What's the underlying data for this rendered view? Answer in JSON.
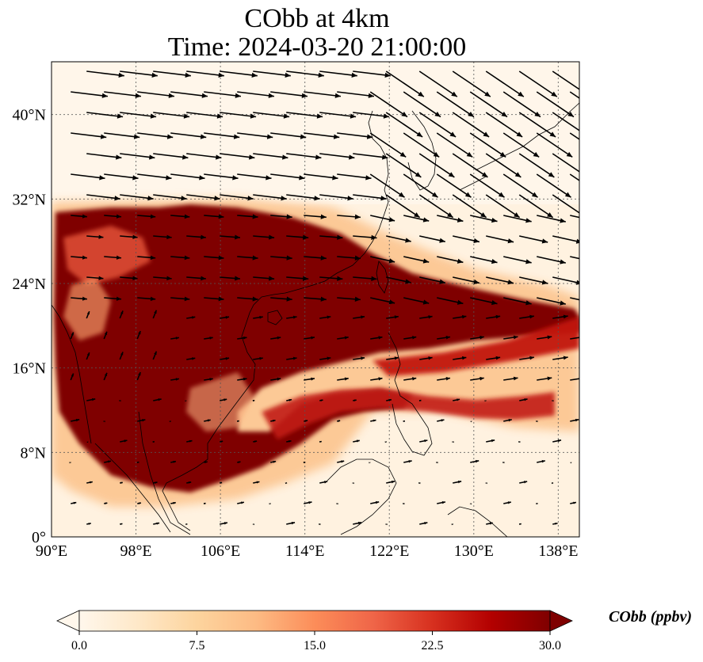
{
  "title": {
    "line1": "CObb at 4km",
    "line2": "Time: 2024-03-20 21:00:00"
  },
  "map": {
    "region": "East and Southeast Asia",
    "lon_range": [
      90,
      140
    ],
    "lat_range": [
      0,
      45
    ],
    "lon_ticks": [
      "90°E",
      "98°E",
      "106°E",
      "114°E",
      "122°E",
      "130°E",
      "138°E"
    ],
    "lat_ticks": [
      "0°",
      "8°N",
      "16°N",
      "24°N",
      "32°N",
      "40°N"
    ],
    "gridlines": true,
    "field_colormap": "OrRd",
    "overlay": "wind vectors"
  },
  "colorbar": {
    "label": "CObb (ppbv)",
    "ticks": [
      "0.0",
      "7.5",
      "15.0",
      "22.5",
      "30.0"
    ],
    "min": 0,
    "max": 30,
    "extend": "both",
    "colors": [
      "#fff7ec",
      "#fee8c8",
      "#fdd49e",
      "#fdbb84",
      "#fc8d59",
      "#ef6548",
      "#d7301f",
      "#b30000",
      "#7f0000"
    ]
  }
}
